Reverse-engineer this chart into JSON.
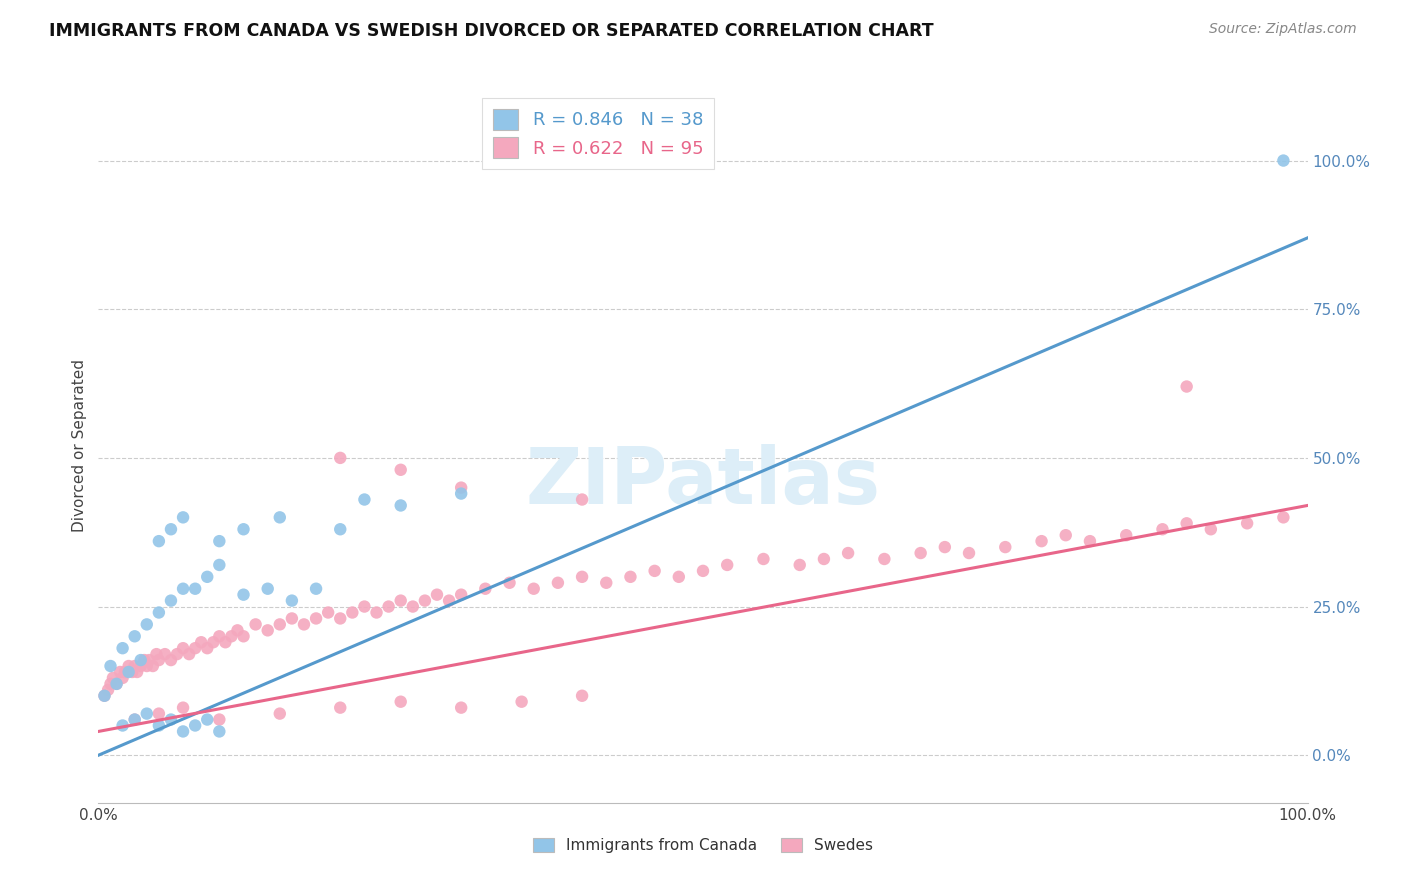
{
  "title": "IMMIGRANTS FROM CANADA VS SWEDISH DIVORCED OR SEPARATED CORRELATION CHART",
  "source_text": "Source: ZipAtlas.com",
  "ylabel": "Divorced or Separated",
  "xlim": [
    0,
    1
  ],
  "ylim": [
    -0.08,
    1.12
  ],
  "xtick_positions": [
    0.0,
    1.0
  ],
  "xtick_labels": [
    "0.0%",
    "100.0%"
  ],
  "ytick_vals": [
    0.0,
    0.25,
    0.5,
    0.75,
    1.0
  ],
  "ytick_labels": [
    "0.0%",
    "25.0%",
    "50.0%",
    "75.0%",
    "100.0%"
  ],
  "blue_R": 0.846,
  "blue_N": 38,
  "pink_R": 0.622,
  "pink_N": 95,
  "blue_color": "#92c5e8",
  "pink_color": "#f4a8be",
  "blue_line_color": "#5599cc",
  "pink_line_color": "#e8668a",
  "watermark": "ZIPatlas",
  "watermark_color": "#ddeef8",
  "legend_label_blue": "Immigrants from Canada",
  "legend_label_pink": "Swedes",
  "blue_line_y0": 0.0,
  "blue_line_y1": 0.87,
  "pink_line_y0": 0.04,
  "pink_line_y1": 0.42,
  "blue_scatter_x": [
    0.005,
    0.01,
    0.015,
    0.02,
    0.025,
    0.03,
    0.035,
    0.04,
    0.05,
    0.06,
    0.07,
    0.08,
    0.09,
    0.1,
    0.12,
    0.14,
    0.16,
    0.18,
    0.02,
    0.03,
    0.04,
    0.05,
    0.06,
    0.07,
    0.08,
    0.09,
    0.1,
    0.05,
    0.06,
    0.07,
    0.1,
    0.12,
    0.15,
    0.2,
    0.22,
    0.25,
    0.3,
    0.98
  ],
  "blue_scatter_y": [
    0.1,
    0.15,
    0.12,
    0.18,
    0.14,
    0.2,
    0.16,
    0.22,
    0.24,
    0.26,
    0.28,
    0.28,
    0.3,
    0.32,
    0.27,
    0.28,
    0.26,
    0.28,
    0.05,
    0.06,
    0.07,
    0.05,
    0.06,
    0.04,
    0.05,
    0.06,
    0.04,
    0.36,
    0.38,
    0.4,
    0.36,
    0.38,
    0.4,
    0.38,
    0.43,
    0.42,
    0.44,
    1.0
  ],
  "pink_scatter_x": [
    0.005,
    0.008,
    0.01,
    0.012,
    0.015,
    0.018,
    0.02,
    0.022,
    0.025,
    0.028,
    0.03,
    0.032,
    0.035,
    0.038,
    0.04,
    0.042,
    0.045,
    0.048,
    0.05,
    0.055,
    0.06,
    0.065,
    0.07,
    0.075,
    0.08,
    0.085,
    0.09,
    0.095,
    0.1,
    0.105,
    0.11,
    0.115,
    0.12,
    0.13,
    0.14,
    0.15,
    0.16,
    0.17,
    0.18,
    0.19,
    0.2,
    0.21,
    0.22,
    0.23,
    0.24,
    0.25,
    0.26,
    0.27,
    0.28,
    0.29,
    0.3,
    0.32,
    0.34,
    0.36,
    0.38,
    0.4,
    0.42,
    0.44,
    0.46,
    0.48,
    0.5,
    0.52,
    0.55,
    0.58,
    0.6,
    0.62,
    0.65,
    0.68,
    0.7,
    0.72,
    0.75,
    0.78,
    0.8,
    0.82,
    0.85,
    0.88,
    0.9,
    0.92,
    0.95,
    0.98,
    0.03,
    0.05,
    0.07,
    0.1,
    0.15,
    0.2,
    0.25,
    0.3,
    0.35,
    0.4,
    0.2,
    0.25,
    0.3,
    0.4,
    0.9
  ],
  "pink_scatter_y": [
    0.1,
    0.11,
    0.12,
    0.13,
    0.12,
    0.14,
    0.13,
    0.14,
    0.15,
    0.14,
    0.15,
    0.14,
    0.15,
    0.16,
    0.15,
    0.16,
    0.15,
    0.17,
    0.16,
    0.17,
    0.16,
    0.17,
    0.18,
    0.17,
    0.18,
    0.19,
    0.18,
    0.19,
    0.2,
    0.19,
    0.2,
    0.21,
    0.2,
    0.22,
    0.21,
    0.22,
    0.23,
    0.22,
    0.23,
    0.24,
    0.23,
    0.24,
    0.25,
    0.24,
    0.25,
    0.26,
    0.25,
    0.26,
    0.27,
    0.26,
    0.27,
    0.28,
    0.29,
    0.28,
    0.29,
    0.3,
    0.29,
    0.3,
    0.31,
    0.3,
    0.31,
    0.32,
    0.33,
    0.32,
    0.33,
    0.34,
    0.33,
    0.34,
    0.35,
    0.34,
    0.35,
    0.36,
    0.37,
    0.36,
    0.37,
    0.38,
    0.39,
    0.38,
    0.39,
    0.4,
    0.06,
    0.07,
    0.08,
    0.06,
    0.07,
    0.08,
    0.09,
    0.08,
    0.09,
    0.1,
    0.5,
    0.48,
    0.45,
    0.43,
    0.62
  ]
}
